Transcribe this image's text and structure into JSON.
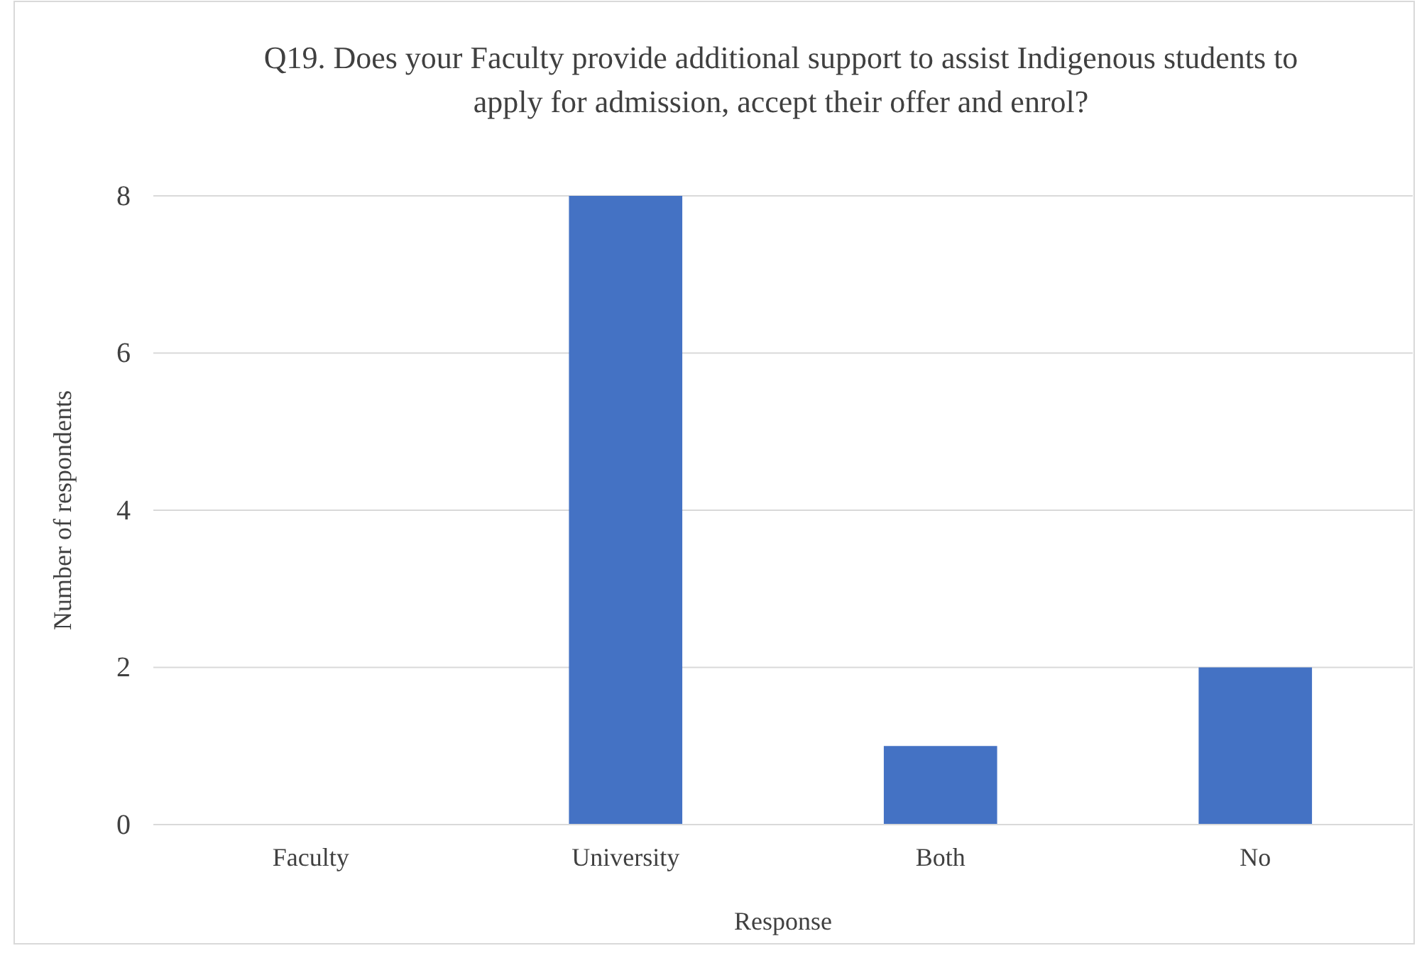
{
  "chart_data": {
    "type": "bar",
    "title": "Q19. Does your Faculty provide additional support to assist Indigenous students to apply for admission, accept their offer and enrol?",
    "xlabel": "Response",
    "ylabel": "Number of respondents",
    "categories": [
      "Faculty",
      "University",
      "Both",
      "No"
    ],
    "values": [
      0,
      8,
      1,
      2
    ],
    "color": "#4472c4",
    "ylim": [
      0,
      8
    ],
    "yticks": [
      0,
      2,
      4,
      6,
      8
    ],
    "grid": "y",
    "legend": false
  }
}
